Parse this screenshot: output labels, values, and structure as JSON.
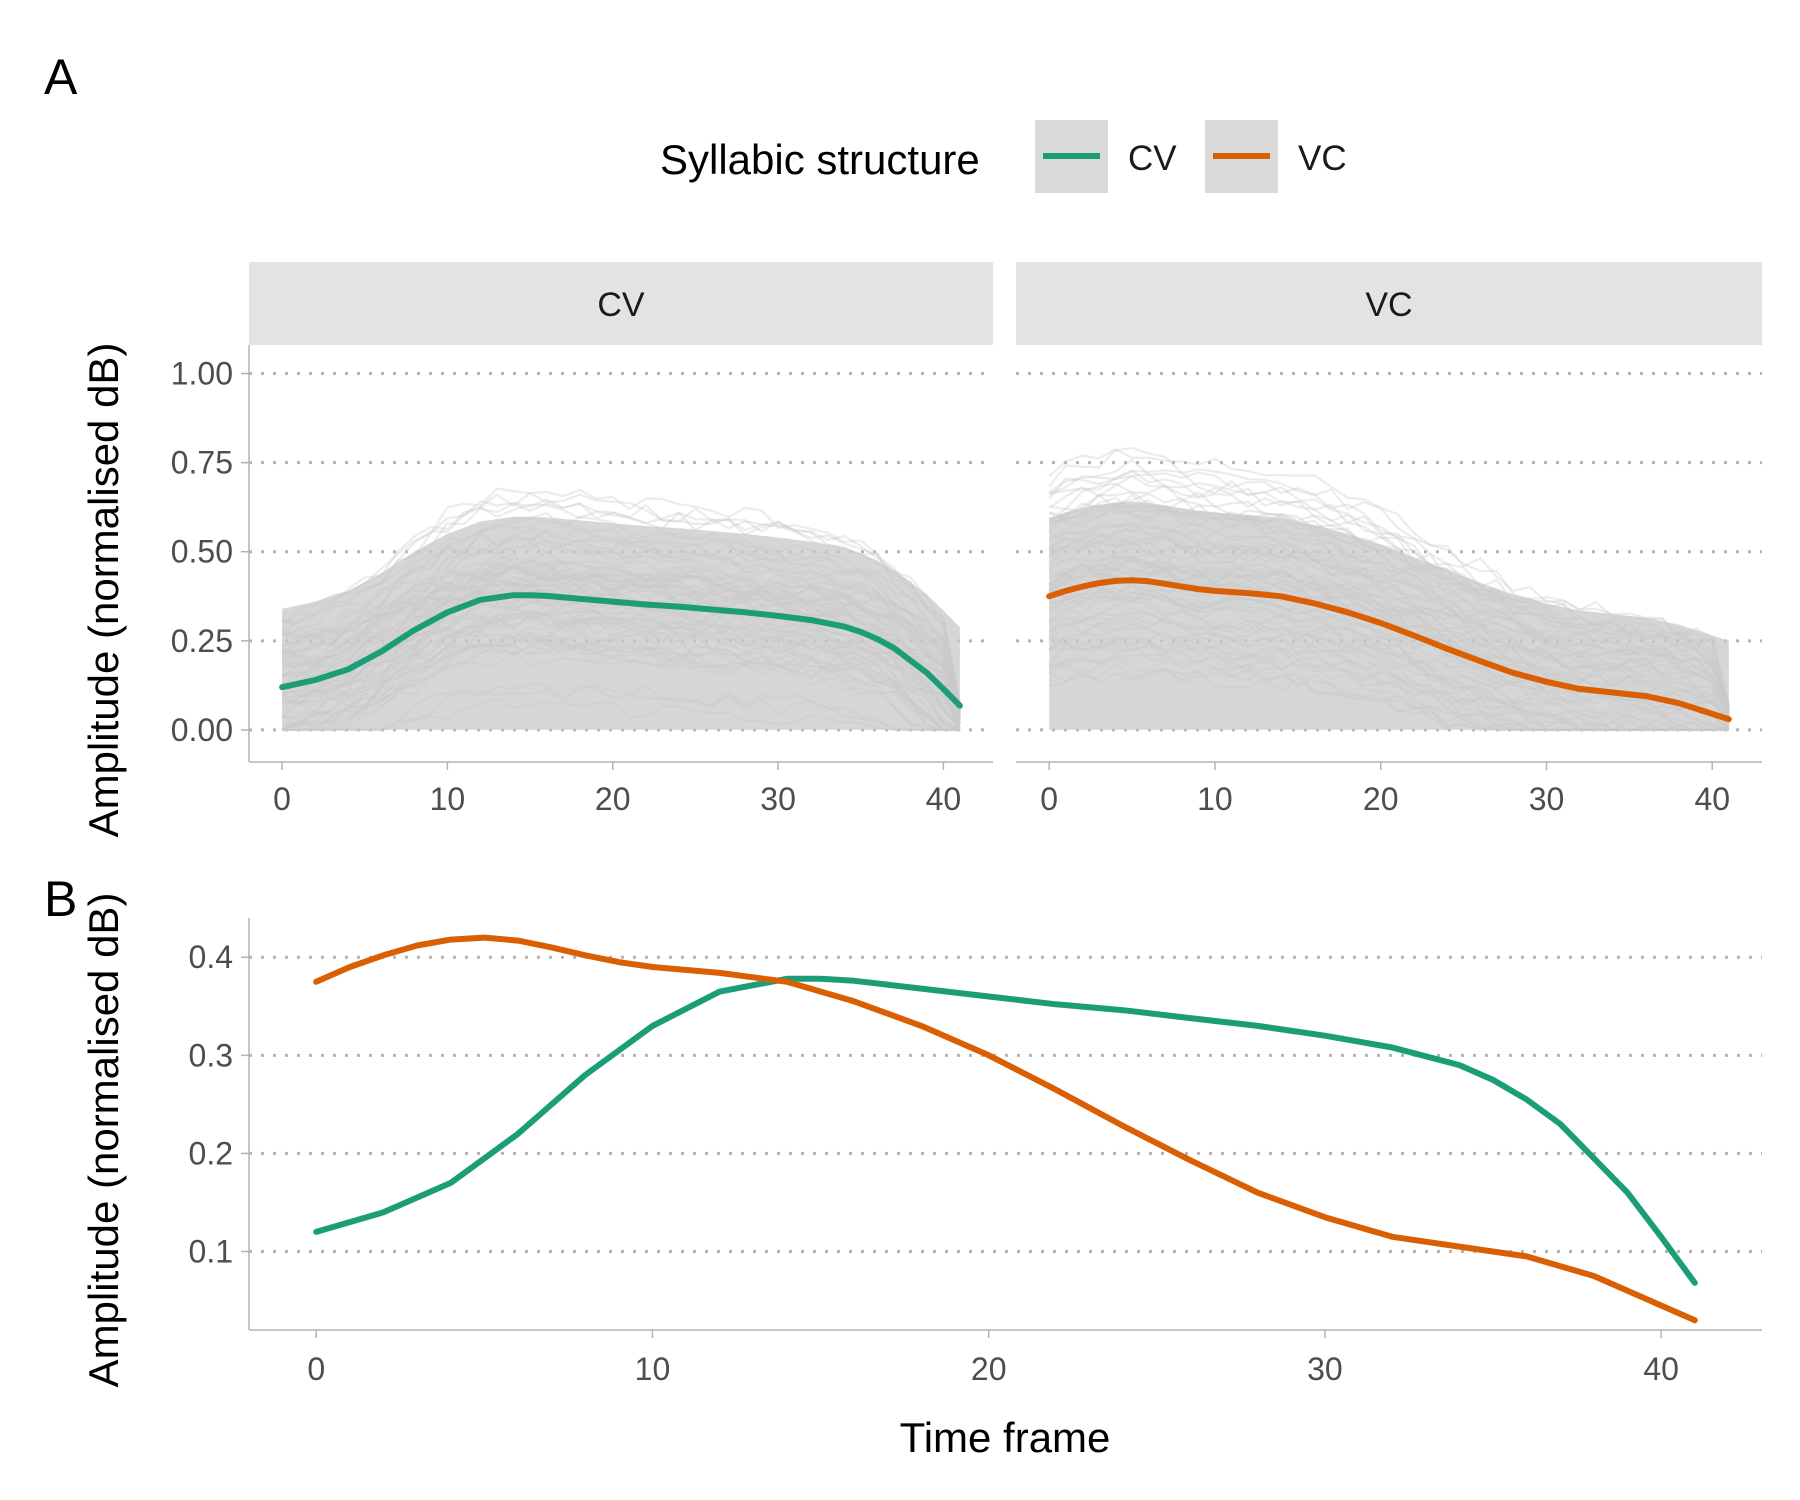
{
  "figure": {
    "panel_a_label": "A",
    "panel_b_label": "B"
  },
  "legend": {
    "title": "Syllabic structure",
    "items": [
      {
        "label": "CV",
        "color": "#1b9e77"
      },
      {
        "label": "VC",
        "color": "#d95f02"
      }
    ]
  },
  "colors": {
    "CV": "#1b9e77",
    "VC": "#d95f02",
    "individual_traces": "#c8c8c8",
    "strip_background": "#e3e3e3",
    "gridline": "#b3b3b3"
  },
  "chart_data": [
    {
      "id": "A",
      "type": "line",
      "facets": [
        "CV",
        "VC"
      ],
      "ylabel": "Amplitude (normalised dB)",
      "xlabel": "",
      "xlim": [
        -2,
        43
      ],
      "ylim": [
        -0.09,
        1.08
      ],
      "x_ticks": [
        0,
        10,
        20,
        30,
        40
      ],
      "y_ticks": [
        0.0,
        0.25,
        0.5,
        0.75,
        1.0
      ],
      "y_tick_labels": [
        "0.00",
        "0.25",
        "0.50",
        "0.75",
        "1.00"
      ],
      "grid": "horizontal dotted major",
      "background_traces": "many semi-transparent grey individual amplitude contours per facet (not individually readable)",
      "series": [
        {
          "name": "CV",
          "facet": "CV",
          "x": [
            0,
            2,
            4,
            6,
            8,
            10,
            12,
            14,
            15,
            16,
            18,
            20,
            22,
            24,
            26,
            28,
            30,
            32,
            34,
            35,
            36,
            37,
            38,
            39,
            40,
            41
          ],
          "y": [
            0.12,
            0.14,
            0.17,
            0.22,
            0.28,
            0.33,
            0.365,
            0.378,
            0.378,
            0.376,
            0.368,
            0.36,
            0.352,
            0.346,
            0.338,
            0.33,
            0.32,
            0.308,
            0.29,
            0.275,
            0.255,
            0.23,
            0.195,
            0.16,
            0.115,
            0.068
          ]
        },
        {
          "name": "VC",
          "facet": "VC",
          "x": [
            0,
            1,
            2,
            3,
            4,
            5,
            6,
            7,
            8,
            9,
            10,
            12,
            14,
            16,
            18,
            20,
            22,
            24,
            26,
            28,
            30,
            32,
            34,
            36,
            38,
            40,
            41
          ],
          "y": [
            0.375,
            0.39,
            0.402,
            0.412,
            0.418,
            0.42,
            0.417,
            0.41,
            0.402,
            0.395,
            0.39,
            0.384,
            0.375,
            0.355,
            0.33,
            0.3,
            0.265,
            0.228,
            0.193,
            0.16,
            0.135,
            0.115,
            0.105,
            0.095,
            0.075,
            0.045,
            0.03
          ]
        }
      ]
    },
    {
      "id": "B",
      "type": "line",
      "ylabel": "Amplitude (normalised dB)",
      "xlabel": "Time frame",
      "xlim": [
        -2,
        43
      ],
      "ylim": [
        0.02,
        0.44
      ],
      "x_ticks": [
        0,
        10,
        20,
        30,
        40
      ],
      "y_ticks": [
        0.1,
        0.2,
        0.3,
        0.4
      ],
      "y_tick_labels": [
        "0.1",
        "0.2",
        "0.3",
        "0.4"
      ],
      "grid": "horizontal dotted major",
      "series": [
        {
          "name": "CV",
          "x": [
            0,
            2,
            4,
            6,
            8,
            10,
            12,
            14,
            15,
            16,
            18,
            20,
            22,
            24,
            26,
            28,
            30,
            32,
            34,
            35,
            36,
            37,
            38,
            39,
            40,
            41
          ],
          "y": [
            0.12,
            0.14,
            0.17,
            0.22,
            0.28,
            0.33,
            0.365,
            0.378,
            0.378,
            0.376,
            0.368,
            0.36,
            0.352,
            0.346,
            0.338,
            0.33,
            0.32,
            0.308,
            0.29,
            0.275,
            0.255,
            0.23,
            0.195,
            0.16,
            0.115,
            0.068
          ]
        },
        {
          "name": "VC",
          "x": [
            0,
            1,
            2,
            3,
            4,
            5,
            6,
            7,
            8,
            9,
            10,
            12,
            14,
            16,
            18,
            20,
            22,
            24,
            26,
            28,
            30,
            32,
            34,
            36,
            38,
            40,
            41
          ],
          "y": [
            0.375,
            0.39,
            0.402,
            0.412,
            0.418,
            0.42,
            0.417,
            0.41,
            0.402,
            0.395,
            0.39,
            0.384,
            0.375,
            0.355,
            0.33,
            0.3,
            0.265,
            0.228,
            0.193,
            0.16,
            0.135,
            0.115,
            0.105,
            0.095,
            0.075,
            0.045,
            0.03
          ]
        }
      ]
    }
  ]
}
